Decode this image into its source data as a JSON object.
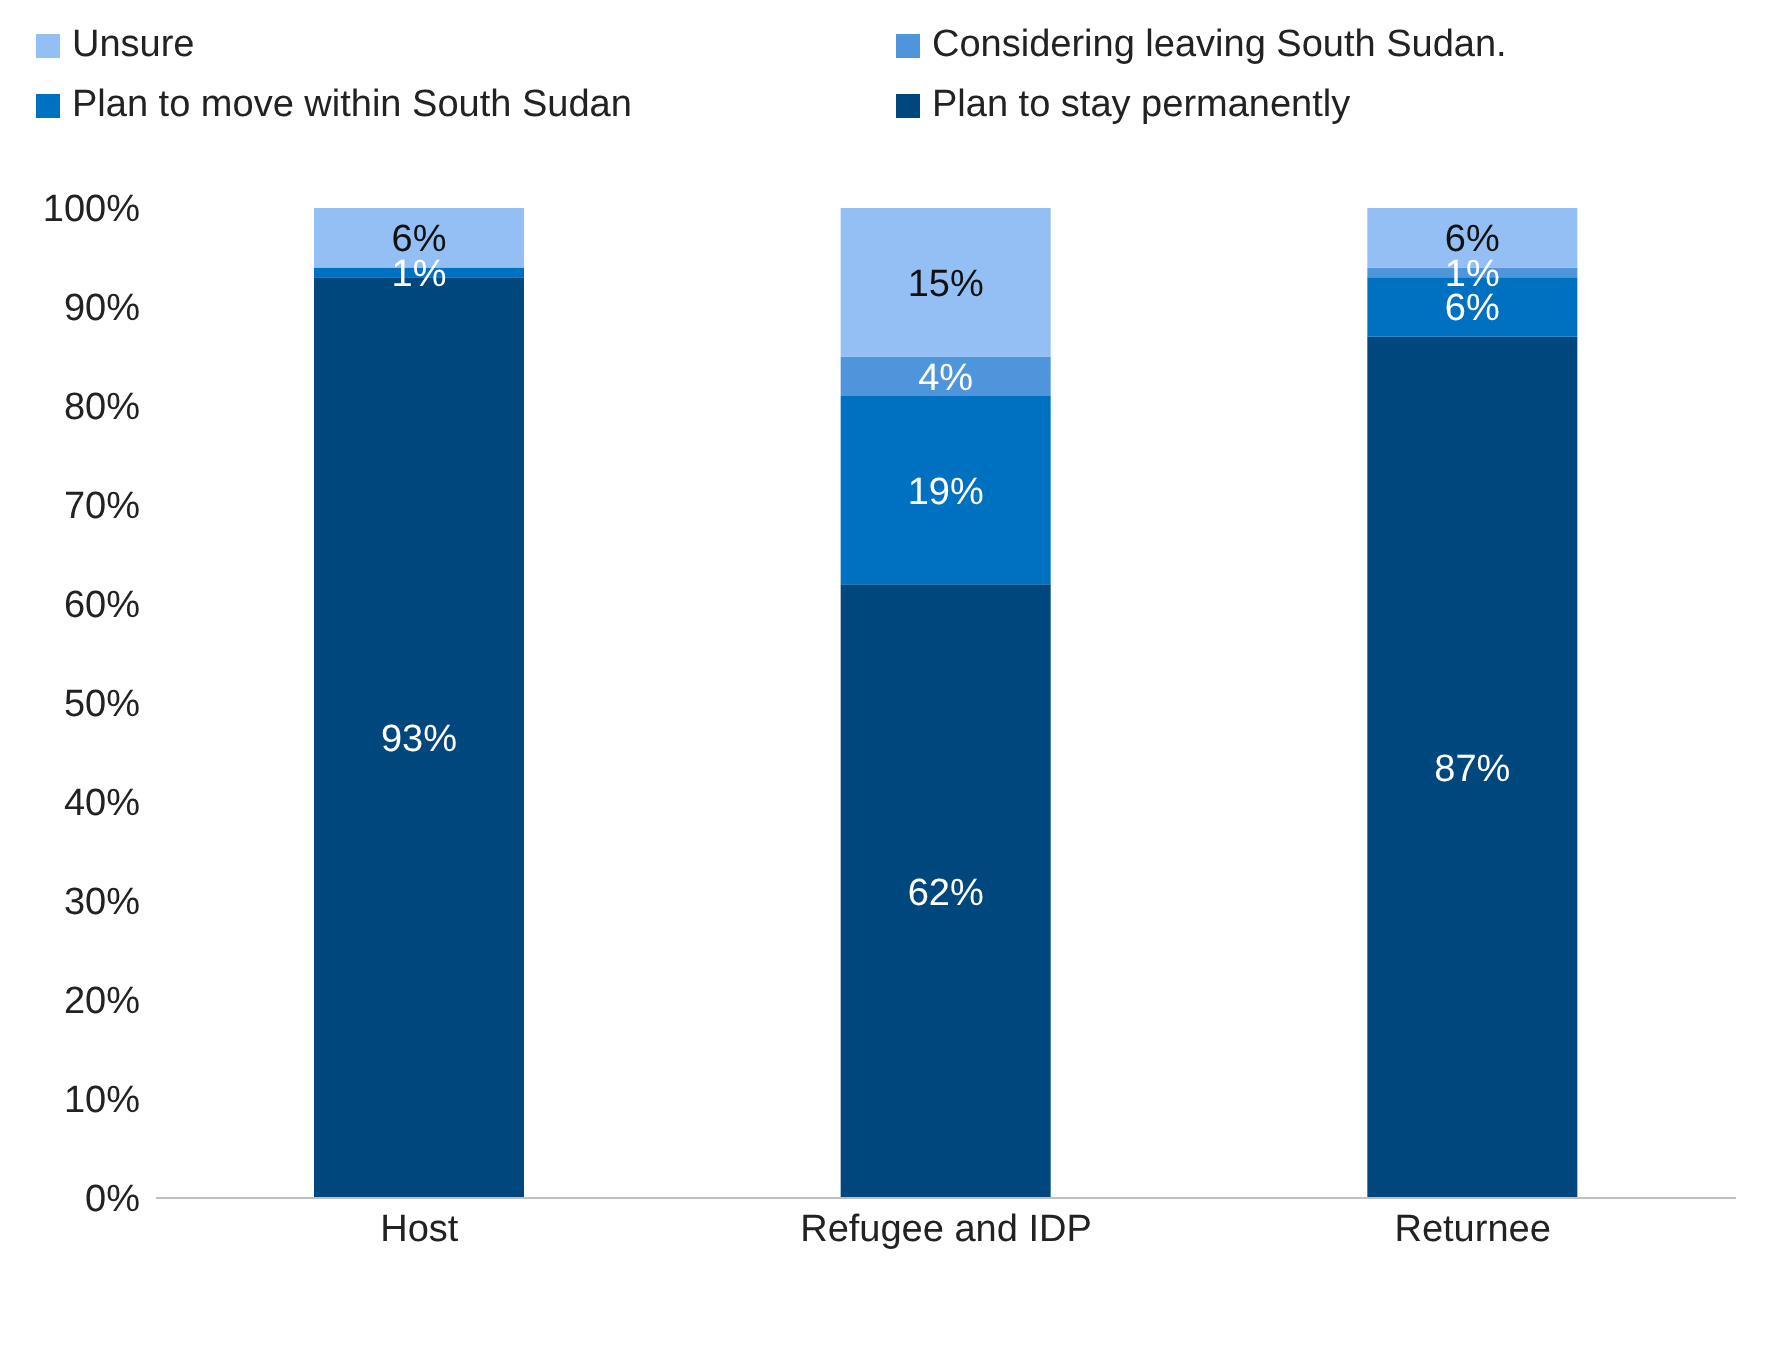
{
  "chart_data": {
    "type": "bar",
    "stacked": true,
    "categories": [
      "Host",
      "Refugee and IDP",
      "Returnee"
    ],
    "series": [
      {
        "name": "Plan to stay permanently",
        "color": "#00477e",
        "values": [
          93,
          62,
          87
        ],
        "value_labels": [
          "93%",
          "62%",
          "87%"
        ]
      },
      {
        "name": "Plan to move within South Sudan",
        "color": "#0070c0",
        "values": [
          1,
          19,
          6
        ],
        "value_labels": [
          "1%",
          "19%",
          "6%"
        ]
      },
      {
        "name": "Considering leaving South Sudan.",
        "color": "#4f95dc",
        "values": [
          0,
          4,
          1
        ],
        "value_labels": [
          null,
          "4%",
          "1%"
        ]
      },
      {
        "name": "Unsure",
        "color": "#94bff5",
        "values": [
          6,
          15,
          6
        ],
        "value_labels": [
          "6%",
          "15%",
          "6%"
        ]
      }
    ],
    "ylim": [
      0,
      100
    ],
    "yticks": [
      {
        "value": 0,
        "label": "0%"
      },
      {
        "value": 10,
        "label": "10%"
      },
      {
        "value": 20,
        "label": "20%"
      },
      {
        "value": 30,
        "label": "30%"
      },
      {
        "value": 40,
        "label": "40%"
      },
      {
        "value": 50,
        "label": "50%"
      },
      {
        "value": 60,
        "label": "60%"
      },
      {
        "value": 70,
        "label": "70%"
      },
      {
        "value": 80,
        "label": "80%"
      },
      {
        "value": 90,
        "label": "90%"
      },
      {
        "value": 100,
        "label": "100%"
      }
    ],
    "grid": false,
    "legend": "top"
  }
}
